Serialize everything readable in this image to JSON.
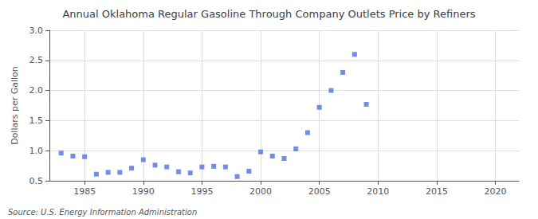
{
  "chart_data": {
    "type": "scatter",
    "title": "Annual Oklahoma Regular Gasoline Through Company Outlets Price by Refiners",
    "ylabel": "Dollars per Gallon",
    "annotation": "Source: U.S. Energy Information Administration",
    "marker": "square",
    "grid": true,
    "xlim": [
      1982,
      2022
    ],
    "ylim": [
      0.5,
      3.0
    ],
    "xticks": [
      1985,
      1990,
      1995,
      2000,
      2005,
      2010,
      2015,
      2020
    ],
    "yticks": [
      0.5,
      {
        "value": 1.0,
        "label": "1.0"
      },
      1.5,
      {
        "value": 2.0,
        "label": "2.0"
      },
      2.5,
      {
        "value": 3.0,
        "label": "3.0"
      }
    ],
    "x": [
      1983,
      1984,
      1985,
      1986,
      1987,
      1988,
      1989,
      1990,
      1991,
      1992,
      1993,
      1994,
      1995,
      1996,
      1997,
      1998,
      1999,
      2000,
      2001,
      2002,
      2003,
      2004,
      2005,
      2006,
      2007,
      2008,
      2009
    ],
    "values": [
      0.96,
      0.91,
      0.9,
      0.61,
      0.64,
      0.64,
      0.71,
      0.85,
      0.76,
      0.73,
      0.65,
      0.63,
      0.73,
      0.74,
      0.73,
      0.57,
      0.66,
      0.98,
      0.91,
      0.87,
      1.03,
      1.3,
      1.72,
      2.0,
      2.3,
      2.6,
      1.77
    ]
  }
}
